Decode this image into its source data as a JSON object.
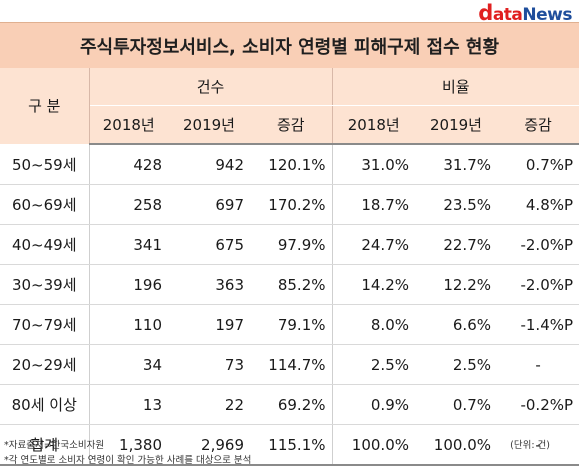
{
  "logo": {
    "d": "d",
    "rest": "ata",
    "news": "News"
  },
  "title": "주식투자정보서비스, 소비자 연령별 피해구제 접수 현황",
  "header": {
    "category": "구  분",
    "count_group": "건수",
    "ratio_group": "비율",
    "columns": [
      "2018년",
      "2019년",
      "증감",
      "2018년",
      "2019년",
      "증감"
    ]
  },
  "rows": [
    {
      "label": "50~59세",
      "c2018": "428",
      "c2019": "942",
      "c_chg": "120.1%",
      "r2018": "31.0%",
      "r2019": "31.7%",
      "r_chg": "0.7%P"
    },
    {
      "label": "60~69세",
      "c2018": "258",
      "c2019": "697",
      "c_chg": "170.2%",
      "r2018": "18.7%",
      "r2019": "23.5%",
      "r_chg": "4.8%P"
    },
    {
      "label": "40~49세",
      "c2018": "341",
      "c2019": "675",
      "c_chg": "97.9%",
      "r2018": "24.7%",
      "r2019": "22.7%",
      "r_chg": "-2.0%P"
    },
    {
      "label": "30~39세",
      "c2018": "196",
      "c2019": "363",
      "c_chg": "85.2%",
      "r2018": "14.2%",
      "r2019": "12.2%",
      "r_chg": "-2.0%P"
    },
    {
      "label": "70~79세",
      "c2018": "110",
      "c2019": "197",
      "c_chg": "79.1%",
      "r2018": "8.0%",
      "r2019": "6.6%",
      "r_chg": "-1.4%P"
    },
    {
      "label": "20~29세",
      "c2018": "34",
      "c2019": "73",
      "c_chg": "114.7%",
      "r2018": "2.5%",
      "r2019": "2.5%",
      "r_chg": "-"
    },
    {
      "label": "80세 이상",
      "c2018": "13",
      "c2019": "22",
      "c_chg": "69.2%",
      "r2018": "0.9%",
      "r2019": "0.7%",
      "r_chg": "-0.2%P"
    },
    {
      "label": "합계",
      "c2018": "1,380",
      "c2019": "2,969",
      "c_chg": "115.1%",
      "r2018": "100.0%",
      "r2019": "100.0%",
      "r_chg": "-"
    }
  ],
  "footer": {
    "source": "*자료출처=한국소비자원",
    "note": "*각 연도별로 소비자 연령이 확인 가능한 사례를 대상으로 분석",
    "unit": "(단위: 건)"
  }
}
